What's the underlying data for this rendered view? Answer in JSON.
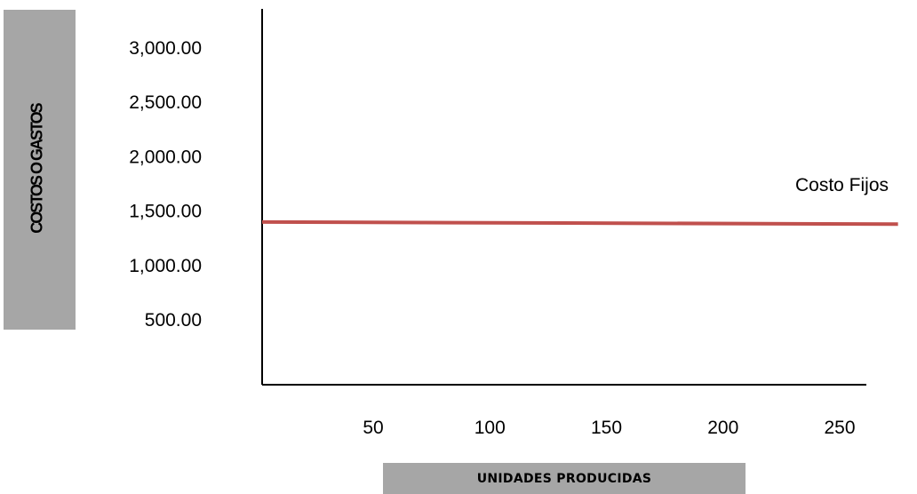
{
  "chart_data": {
    "type": "line",
    "ylabel": "COSTOS O GASTOS",
    "xlabel": "UNIDADES PRODUCIDAS",
    "y_ticks": [
      "3,000.00",
      "2,500.00",
      "2,000.00",
      "1,500.00",
      "1,000.00",
      "500.00"
    ],
    "x_ticks": [
      "50",
      "100",
      "150",
      "200",
      "250"
    ],
    "ylim": [
      0,
      3200
    ],
    "xlim": [
      0,
      275
    ],
    "series": [
      {
        "name": "Costo Fijos",
        "color": "#c0504d",
        "x": [
          0,
          275
        ],
        "values": [
          1400,
          1380
        ]
      }
    ],
    "grid": false
  }
}
